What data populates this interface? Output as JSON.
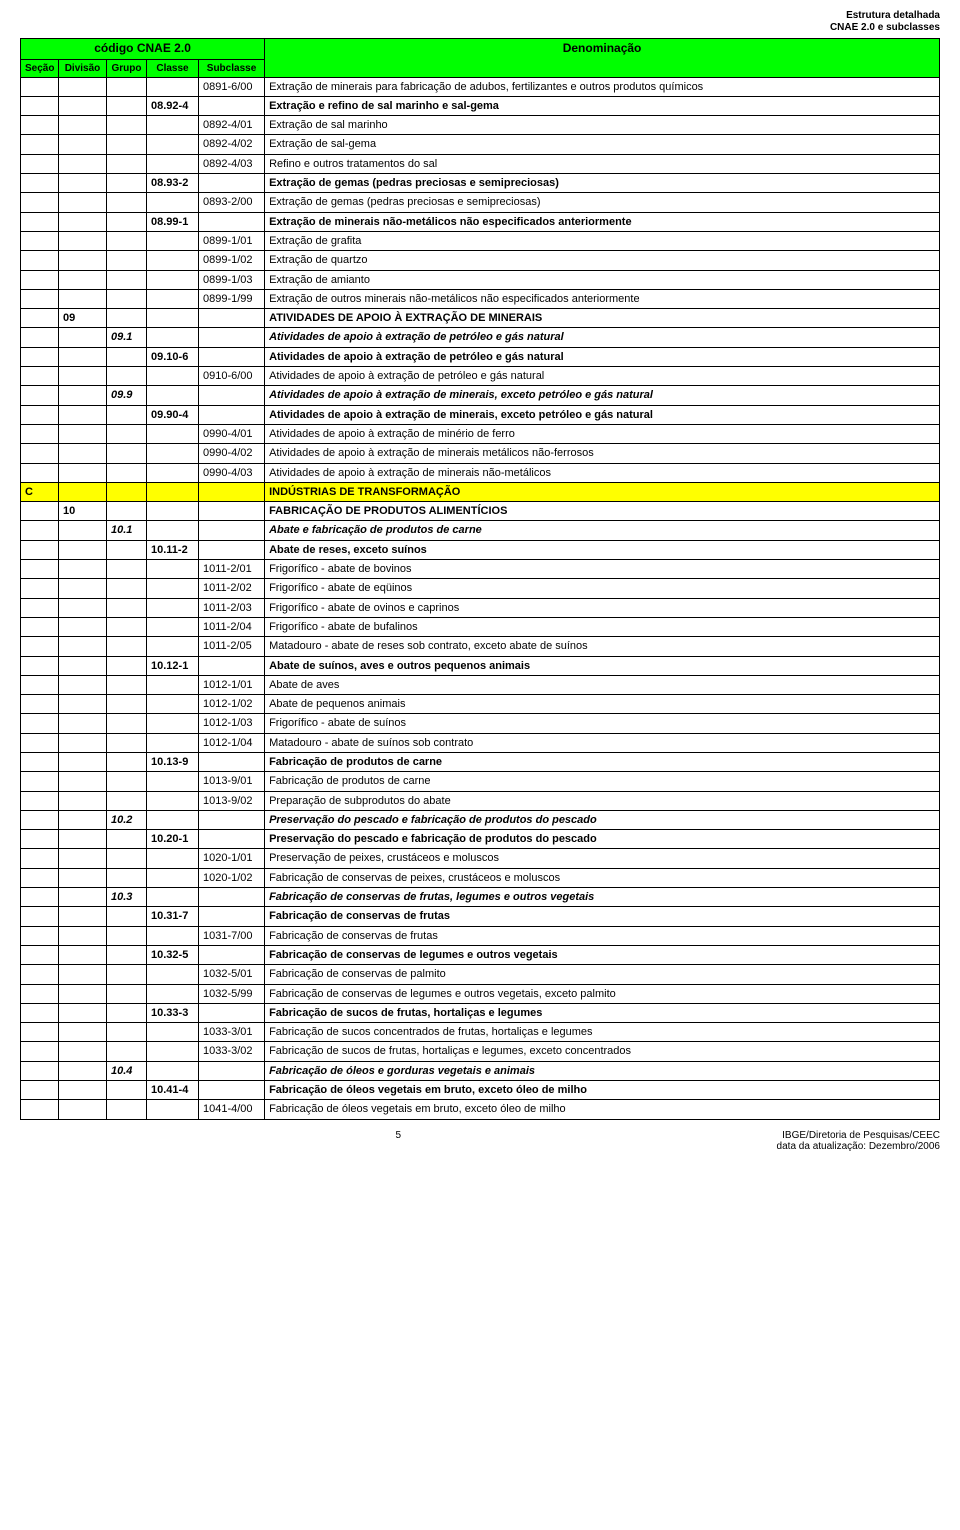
{
  "topRight": {
    "line1": "Estrutura detalhada",
    "line2": "CNAE 2.0 e subclasses"
  },
  "headers": {
    "codigo": "código CNAE 2.0",
    "denominacao": "Denominação",
    "secao": "Seção",
    "divisao": "Divisão",
    "grupo": "Grupo",
    "classe": "Classe",
    "subclasse": "Subclasse"
  },
  "footer": {
    "page": "5",
    "ibge": "IBGE/Diretoria de Pesquisas/CEEC",
    "date": "data da atualização: Dezembro/2006"
  },
  "colors": {
    "headerBg": "#00ff00",
    "highlightBg": "#ffff00",
    "border": "#000000",
    "text": "#000000",
    "background": "#ffffff"
  },
  "rows": [
    {
      "sub": "0891-6/00",
      "den": "Extração de minerais para fabricação de adubos, fertilizantes e outros produtos químicos"
    },
    {
      "cls": "08.92-4",
      "den": "Extração e refino de sal marinho e sal-gema",
      "bold": true
    },
    {
      "sub": "0892-4/01",
      "den": "Extração de sal marinho"
    },
    {
      "sub": "0892-4/02",
      "den": "Extração de sal-gema"
    },
    {
      "sub": "0892-4/03",
      "den": "Refino e outros tratamentos do sal"
    },
    {
      "cls": "08.93-2",
      "den": "Extração de gemas (pedras preciosas e semipreciosas)",
      "bold": true
    },
    {
      "sub": "0893-2/00",
      "den": "Extração de gemas (pedras preciosas e semipreciosas)"
    },
    {
      "cls": "08.99-1",
      "den": "Extração de minerais não-metálicos não especificados anteriormente",
      "bold": true
    },
    {
      "sub": "0899-1/01",
      "den": "Extração de grafita"
    },
    {
      "sub": "0899-1/02",
      "den": "Extração de quartzo"
    },
    {
      "sub": "0899-1/03",
      "den": "Extração de amianto"
    },
    {
      "sub": "0899-1/99",
      "den": "Extração de outros minerais não-metálicos não especificados anteriormente"
    },
    {
      "div": "09",
      "den": "ATIVIDADES DE APOIO À EXTRAÇÃO DE MINERAIS",
      "bold": true
    },
    {
      "grp": "09.1",
      "den": "Atividades de apoio à extração de petróleo e gás natural",
      "bold": true,
      "italic": true
    },
    {
      "cls": "09.10-6",
      "den": "Atividades de apoio à extração de petróleo e gás natural",
      "bold": true
    },
    {
      "sub": "0910-6/00",
      "den": "Atividades de apoio à extração de petróleo e gás natural"
    },
    {
      "grp": "09.9",
      "den": "Atividades de apoio à extração de minerais, exceto petróleo e gás natural",
      "bold": true,
      "italic": true
    },
    {
      "cls": "09.90-4",
      "den": "Atividades de apoio à extração de minerais, exceto petróleo e gás natural",
      "bold": true
    },
    {
      "sub": "0990-4/01",
      "den": "Atividades de apoio à extração de minério de ferro"
    },
    {
      "sub": "0990-4/02",
      "den": "Atividades de apoio à extração de minerais metálicos não-ferrosos"
    },
    {
      "sub": "0990-4/03",
      "den": "Atividades de apoio à extração de minerais não-metálicos"
    },
    {
      "sec": "C",
      "den": "INDÚSTRIAS DE TRANSFORMAÇÃO",
      "yellow": true,
      "bold": true
    },
    {
      "div": "10",
      "den": "FABRICAÇÃO DE PRODUTOS ALIMENTÍCIOS",
      "bold": true
    },
    {
      "grp": "10.1",
      "den": "Abate e fabricação de produtos de carne",
      "bold": true,
      "italic": true
    },
    {
      "cls": "10.11-2",
      "den": "Abate de reses, exceto suínos",
      "bold": true
    },
    {
      "sub": "1011-2/01",
      "den": "Frigorífico - abate de bovinos"
    },
    {
      "sub": "1011-2/02",
      "den": "Frigorífico - abate de eqüinos"
    },
    {
      "sub": "1011-2/03",
      "den": "Frigorífico - abate de ovinos e caprinos"
    },
    {
      "sub": "1011-2/04",
      "den": "Frigorífico - abate de bufalinos"
    },
    {
      "sub": "1011-2/05",
      "den": "Matadouro - abate de reses sob contrato, exceto abate de suínos"
    },
    {
      "cls": "10.12-1",
      "den": "Abate de suínos, aves e outros pequenos animais",
      "bold": true
    },
    {
      "sub": "1012-1/01",
      "den": "Abate de aves"
    },
    {
      "sub": "1012-1/02",
      "den": "Abate de pequenos animais"
    },
    {
      "sub": "1012-1/03",
      "den": "Frigorífico - abate de suínos"
    },
    {
      "sub": "1012-1/04",
      "den": "Matadouro - abate de suínos sob contrato"
    },
    {
      "cls": "10.13-9",
      "den": "Fabricação de produtos de carne",
      "bold": true
    },
    {
      "sub": "1013-9/01",
      "den": "Fabricação de produtos de carne"
    },
    {
      "sub": "1013-9/02",
      "den": "Preparação de subprodutos do abate"
    },
    {
      "grp": "10.2",
      "den": "Preservação do pescado e fabricação de produtos do pescado",
      "bold": true,
      "italic": true
    },
    {
      "cls": "10.20-1",
      "den": "Preservação do pescado e fabricação de produtos do pescado",
      "bold": true
    },
    {
      "sub": "1020-1/01",
      "den": "Preservação de peixes, crustáceos e moluscos"
    },
    {
      "sub": "1020-1/02",
      "den": "Fabricação de conservas de peixes, crustáceos e moluscos"
    },
    {
      "grp": "10.3",
      "den": "Fabricação de conservas de frutas, legumes e outros vegetais",
      "bold": true,
      "italic": true
    },
    {
      "cls": "10.31-7",
      "den": "Fabricação de conservas de frutas",
      "bold": true
    },
    {
      "sub": "1031-7/00",
      "den": "Fabricação de conservas de frutas"
    },
    {
      "cls": "10.32-5",
      "den": "Fabricação de conservas de legumes e outros vegetais",
      "bold": true
    },
    {
      "sub": "1032-5/01",
      "den": "Fabricação de conservas de palmito"
    },
    {
      "sub": "1032-5/99",
      "den": "Fabricação de conservas de legumes e outros vegetais, exceto palmito"
    },
    {
      "cls": "10.33-3",
      "den": "Fabricação de sucos de frutas, hortaliças e legumes",
      "bold": true
    },
    {
      "sub": "1033-3/01",
      "den": "Fabricação de sucos concentrados de frutas, hortaliças e legumes"
    },
    {
      "sub": "1033-3/02",
      "den": "Fabricação de sucos de frutas, hortaliças e legumes, exceto concentrados"
    },
    {
      "grp": "10.4",
      "den": "Fabricação de óleos e gorduras vegetais e animais",
      "bold": true,
      "italic": true
    },
    {
      "cls": "10.41-4",
      "den": "Fabricação de óleos vegetais em bruto, exceto óleo de milho",
      "bold": true
    },
    {
      "sub": "1041-4/00",
      "den": "Fabricação de óleos vegetais em bruto, exceto óleo de milho"
    }
  ]
}
